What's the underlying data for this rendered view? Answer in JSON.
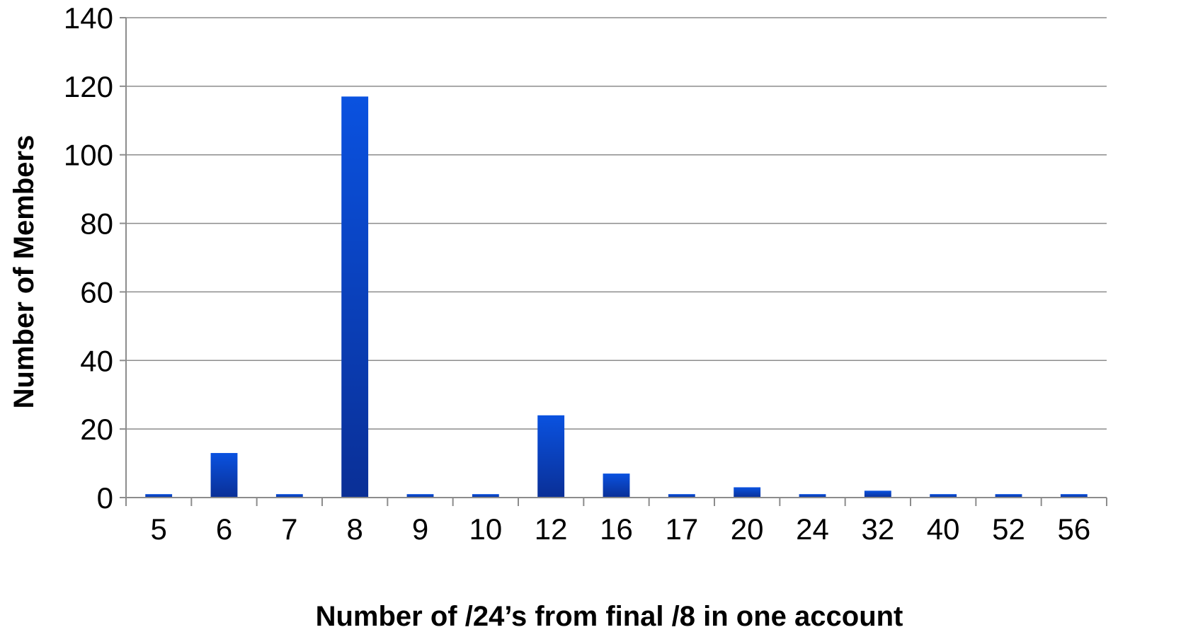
{
  "chart_data": {
    "type": "bar",
    "title": "",
    "xlabel": "Number of /24’s from final /8 in one account",
    "ylabel": "Number of Members",
    "categories": [
      "5",
      "6",
      "7",
      "8",
      "9",
      "10",
      "12",
      "16",
      "17",
      "20",
      "24",
      "32",
      "40",
      "52",
      "56"
    ],
    "series": [
      {
        "values": [
          1,
          13,
          1,
          117,
          1,
          1,
          24,
          7,
          1,
          3,
          1,
          2,
          1,
          1,
          1
        ]
      }
    ],
    "ylim": [
      0,
      140
    ],
    "yticks": [
      "0",
      "20",
      "40",
      "60",
      "80",
      "100",
      "120",
      "140"
    ],
    "grid": true,
    "legend": "none",
    "colors": {
      "bar_top": "#0a52e0",
      "bar_bottom": "#0a2f96"
    }
  }
}
